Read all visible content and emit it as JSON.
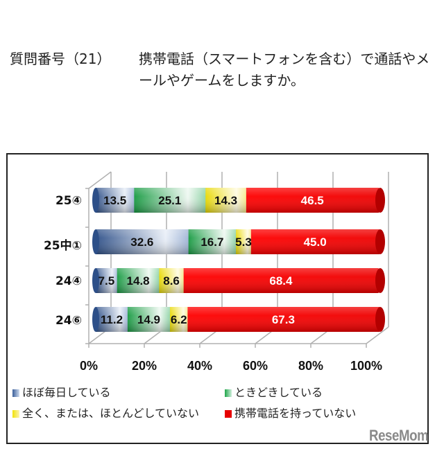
{
  "title": {
    "prefix": "質問番号（21）",
    "text": "携帯電話（スマートフォンを含む）で通話やメールやゲームをしますか。"
  },
  "colors": {
    "daily": "#3b5f9a",
    "sometimes": "#1fa64a",
    "rarely": "#f2e20a",
    "none": "#e60000"
  },
  "chart_data": {
    "type": "bar",
    "orientation": "horizontal",
    "stacked": "percent",
    "title": "質問番号（21）携帯電話（スマートフォンを含む）で通話やメールやゲームをしますか。",
    "xlabel": "",
    "ylabel": "",
    "xlim": [
      0,
      100
    ],
    "x_ticks": [
      "0%",
      "20%",
      "40%",
      "60%",
      "80%",
      "100%"
    ],
    "grid": true,
    "legend_position": "bottom",
    "categories": [
      "25④",
      "25中①",
      "24④",
      "24⑥"
    ],
    "series": [
      {
        "name": "ほぼ毎日している",
        "color": "#3b5f9a",
        "values": [
          13.5,
          32.6,
          7.5,
          11.2
        ]
      },
      {
        "name": "ときどきしている",
        "color": "#1fa64a",
        "values": [
          25.1,
          16.7,
          14.8,
          14.9
        ]
      },
      {
        "name": "全く、または、ほとんどしていない",
        "color": "#f2e20a",
        "values": [
          14.3,
          5.3,
          8.6,
          6.2
        ]
      },
      {
        "name": "携帯電話を持っていない",
        "color": "#e60000",
        "values": [
          46.5,
          45.0,
          68.4,
          67.3
        ]
      }
    ]
  },
  "labels": {
    "rows": [
      [
        "13.5",
        "25.1",
        "14.3",
        "46.5"
      ],
      [
        "32.6",
        "16.7",
        "5.3",
        "45.0"
      ],
      [
        "7.5",
        "14.8",
        "8.6",
        "68.4"
      ],
      [
        "11.2",
        "14.9",
        "6.2",
        "67.3"
      ]
    ]
  },
  "legend": [
    {
      "label": "ほぼ毎日している"
    },
    {
      "label": "ときどきしている"
    },
    {
      "label": "全く、または、ほとんどしていない"
    },
    {
      "label": "携帯電話を持っていない"
    }
  ],
  "watermark": "ReseMom"
}
